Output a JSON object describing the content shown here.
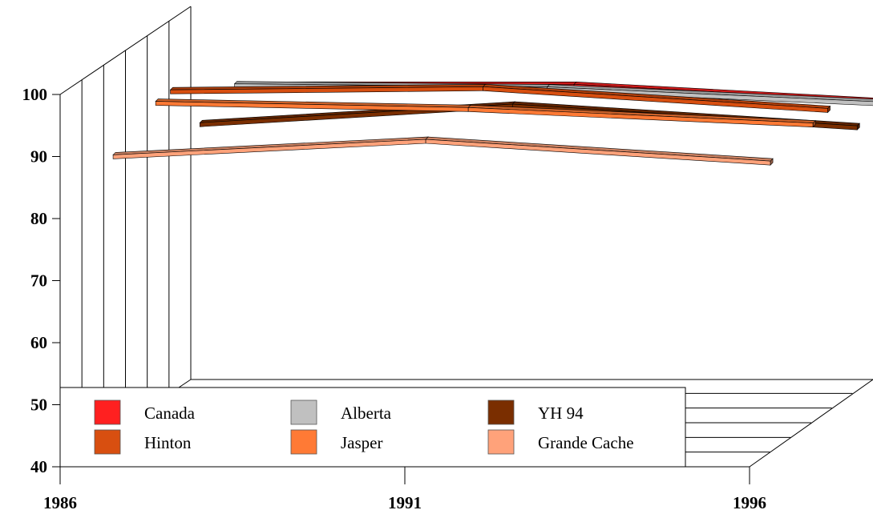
{
  "chart_data": {
    "type": "line",
    "title": "",
    "xlabel": "",
    "ylabel": "",
    "x": [
      1986,
      1991,
      1996
    ],
    "x_ticks": [
      "1986",
      "1991",
      "1996"
    ],
    "y_ticks": [
      "40",
      "50",
      "60",
      "70",
      "80",
      "90",
      "100"
    ],
    "ylim": [
      40,
      100
    ],
    "grid": false,
    "legend_position": "bottom-left",
    "series": [
      {
        "name": "Canada",
        "color": "#ff2020",
        "values": [
          90,
          90,
          87
        ]
      },
      {
        "name": "Alberta",
        "color": "#c0c0c0",
        "values": [
          91.5,
          91,
          88.5
        ]
      },
      {
        "name": "YH 94",
        "color": "#7a2e00",
        "values": [
          87.5,
          90.5,
          87
        ]
      },
      {
        "name": "Hinton",
        "color": "#d84f10",
        "values": [
          94.5,
          95,
          91.5
        ]
      },
      {
        "name": "Jasper",
        "color": "#ff7a35",
        "values": [
          93.5,
          92.5,
          90
        ]
      },
      {
        "name": "Grande Cache",
        "color": "#ffa27a",
        "values": [
          88,
          90.5,
          87
        ]
      }
    ]
  }
}
